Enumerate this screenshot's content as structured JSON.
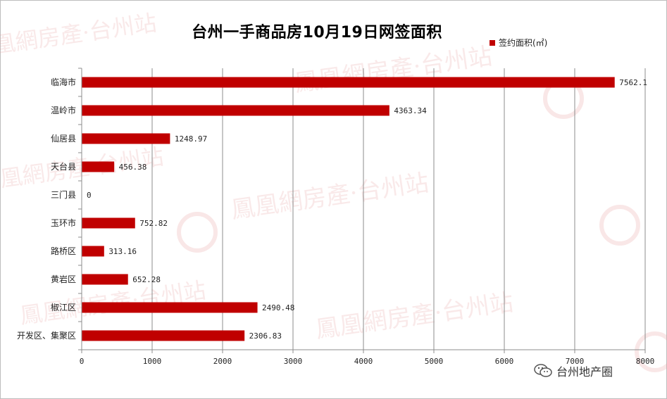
{
  "chart_data": {
    "type": "bar",
    "orientation": "horizontal",
    "title": "台州一手商品房10月19日网签面积",
    "categories": [
      "临海市",
      "温岭市",
      "仙居县",
      "天台县",
      "三门县",
      "玉环市",
      "路桥区",
      "黄岩区",
      "椒江区",
      "开发区、集聚区"
    ],
    "values": [
      7562.1,
      4363.34,
      1248.97,
      456.38,
      0,
      752.82,
      313.16,
      652.28,
      2490.48,
      2306.83
    ],
    "value_labels": [
      "7562.1",
      "4363.34",
      "1248.97",
      "456.38",
      "0",
      "752.82",
      "313.16",
      "652.28",
      "2490.48",
      "2306.83"
    ],
    "series_name": "签约面积(㎡)",
    "xlim": [
      0,
      8000
    ],
    "xticks": [
      "0",
      "1000",
      "2000",
      "3000",
      "4000",
      "5000",
      "6000",
      "7000",
      "8000"
    ],
    "grid": true,
    "legend_position": "top-right",
    "bar_color": "#c00000"
  },
  "watermark": {
    "text": "鳳凰網房產·台州站"
  },
  "source": {
    "label": "台州地产圈"
  }
}
